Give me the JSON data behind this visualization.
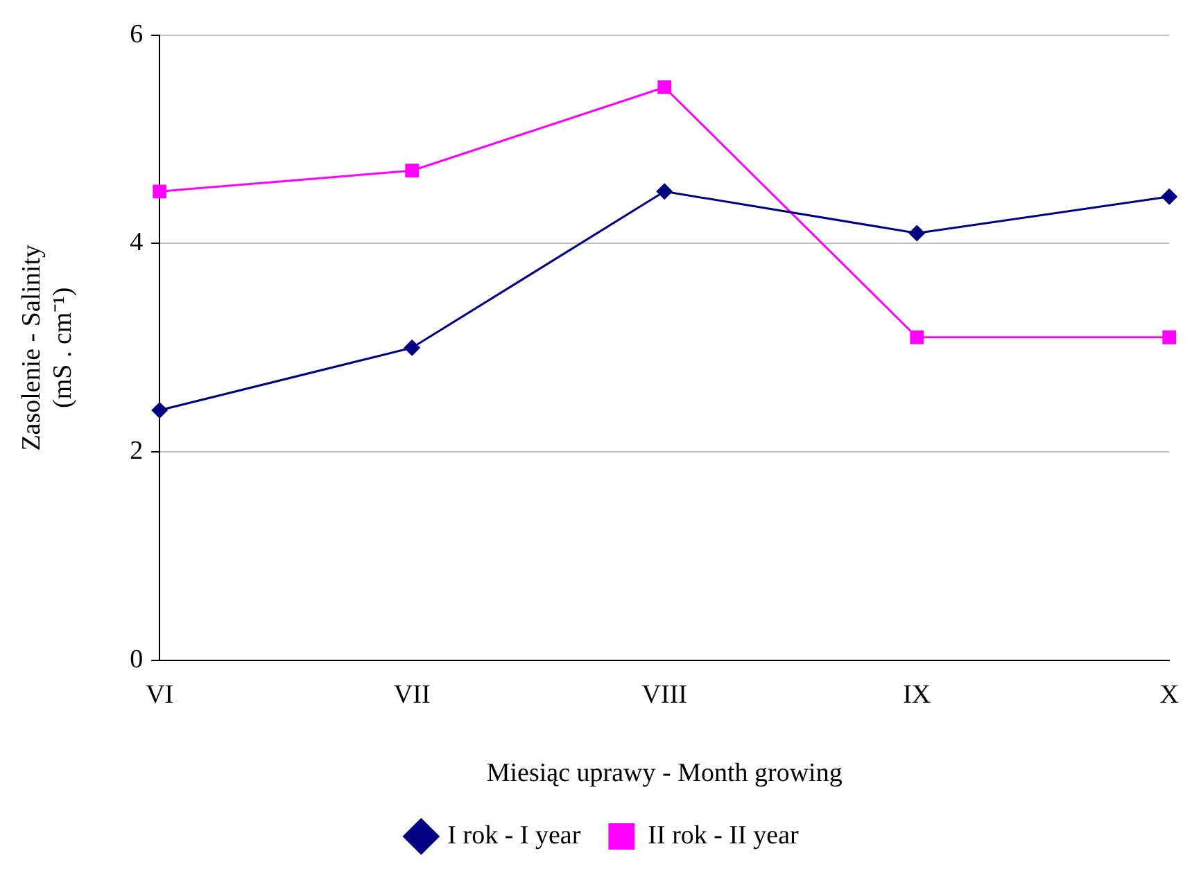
{
  "chart_data": {
    "type": "line",
    "xlabel": "Miesiąc uprawy - Month growing",
    "ylabel": "Zasolenie - Salinity\n(mS . cm⁻¹)",
    "categories": [
      "VI",
      "VII",
      "VIII",
      "IX",
      "X"
    ],
    "series": [
      {
        "name": "I rok - I year",
        "color": "#000080",
        "marker": "diamond",
        "values": [
          2.4,
          3.0,
          4.5,
          4.1,
          4.45
        ]
      },
      {
        "name": "II rok - II year",
        "color": "#ff00ff",
        "marker": "square",
        "values": [
          4.5,
          4.7,
          5.5,
          3.1,
          3.1
        ]
      }
    ],
    "ylim": [
      0,
      6
    ],
    "yticks": [
      0,
      2,
      4,
      6
    ],
    "grid": "y",
    "legend": "bottom",
    "line_style": "solid"
  }
}
